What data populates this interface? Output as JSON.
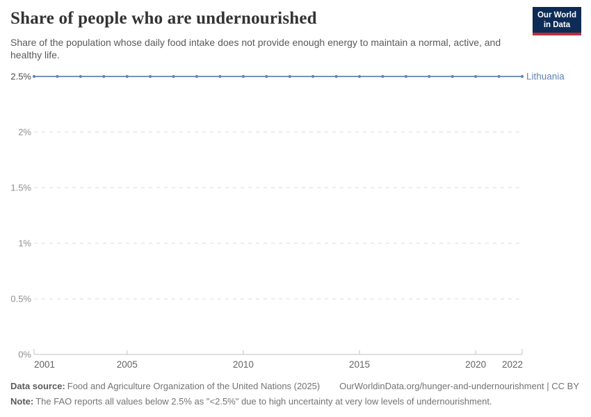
{
  "header": {
    "title": "Share of people who are undernourished",
    "subtitle": "Share of the population whose daily food intake does not provide enough energy to maintain a normal, active, and healthy life.",
    "logo": {
      "line1": "Our World",
      "line2": "in Data"
    }
  },
  "chart_data": {
    "type": "line",
    "title": "Share of people who are undernourished",
    "xlabel": "",
    "ylabel": "",
    "x": [
      2001,
      2002,
      2003,
      2004,
      2005,
      2006,
      2007,
      2008,
      2009,
      2010,
      2011,
      2012,
      2013,
      2014,
      2015,
      2016,
      2017,
      2018,
      2019,
      2020,
      2021,
      2022
    ],
    "series": [
      {
        "name": "Lithuania",
        "color": "#6383b2",
        "values": [
          2.5,
          2.5,
          2.5,
          2.5,
          2.5,
          2.5,
          2.5,
          2.5,
          2.5,
          2.5,
          2.5,
          2.5,
          2.5,
          2.5,
          2.5,
          2.5,
          2.5,
          2.5,
          2.5,
          2.5,
          2.5,
          2.5
        ]
      }
    ],
    "xlim": [
      2001,
      2022
    ],
    "ylim": [
      0,
      2.5
    ],
    "x_tick_labels": [
      "2001",
      "2005",
      "2010",
      "2015",
      "2020",
      "2022"
    ],
    "y_ticks": [
      0,
      0.5,
      1,
      1.5,
      2,
      2.5
    ],
    "y_tick_labels": [
      "0%",
      "0.5%",
      "1%",
      "1.5%",
      "2%",
      "2.5%"
    ],
    "grid": "horizontal-dashed",
    "legend": "end-of-line-label"
  },
  "colors": {
    "series_line": "#6383b2",
    "gridline": "#dadada",
    "axis_line": "#c2c2c2",
    "y_tick_label": "#8f8f8f",
    "y_tick_label_highlight": "#4d4d4d",
    "x_tick_label": "#636363",
    "logo_bg": "#0d2c55",
    "logo_stripe": "#bc2e3c"
  },
  "footer": {
    "datasource_label": "Data source:",
    "datasource_text": "Food and Agriculture Organization of the United Nations (2025)",
    "link_text": "OurWorldinData.org/hunger-and-undernourishment | CC BY",
    "note_label": "Note:",
    "note_text": "The FAO reports all values below 2.5% as \"<2.5%\" due to high uncertainty at very low levels of undernourishment."
  }
}
